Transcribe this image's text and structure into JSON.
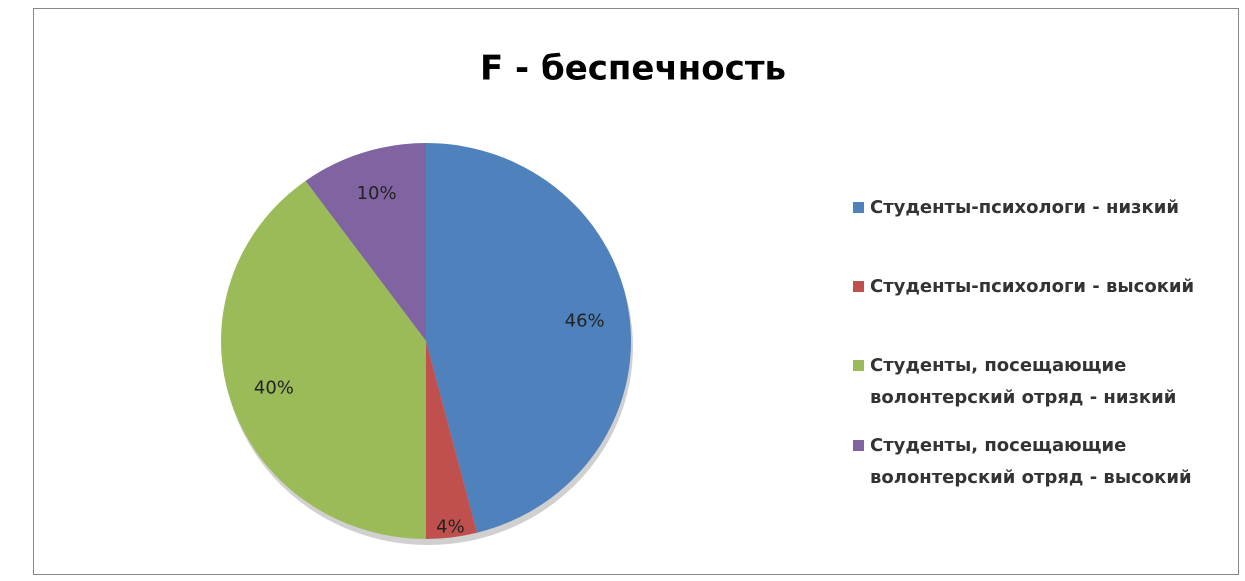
{
  "chart_data": {
    "type": "pie",
    "title": "F - беспечность",
    "categories": [
      "Студенты-психологи - низкий",
      "Студенты-психологи - высокий",
      "Студенты, посещающие волонтерский отряд - низкий",
      "Студенты, посещающие волонтерский отряд - высокий"
    ],
    "values": [
      46,
      4,
      40,
      10
    ],
    "value_labels": [
      "46%",
      "4%",
      "40%",
      "10%"
    ],
    "colors": [
      "#4f81bd",
      "#c0504d",
      "#9bbb59",
      "#8064a2"
    ],
    "legend": "right"
  }
}
